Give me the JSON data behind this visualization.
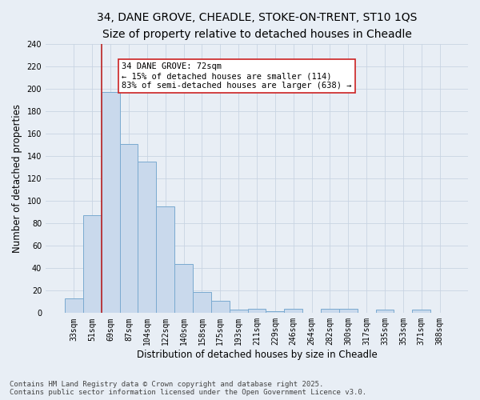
{
  "title_line1": "34, DANE GROVE, CHEADLE, STOKE-ON-TRENT, ST10 1QS",
  "title_line2": "Size of property relative to detached houses in Cheadle",
  "xlabel": "Distribution of detached houses by size in Cheadle",
  "ylabel": "Number of detached properties",
  "categories": [
    "33sqm",
    "51sqm",
    "69sqm",
    "87sqm",
    "104sqm",
    "122sqm",
    "140sqm",
    "158sqm",
    "175sqm",
    "193sqm",
    "211sqm",
    "229sqm",
    "246sqm",
    "264sqm",
    "282sqm",
    "300sqm",
    "317sqm",
    "335sqm",
    "353sqm",
    "371sqm",
    "388sqm"
  ],
  "values": [
    13,
    87,
    197,
    151,
    135,
    95,
    44,
    19,
    11,
    3,
    4,
    2,
    4,
    0,
    4,
    4,
    0,
    3,
    0,
    3,
    0
  ],
  "bar_color": "#c9d9ec",
  "bar_edge_color": "#7aaad0",
  "bar_linewidth": 0.7,
  "vline_color": "#bb2222",
  "vline_linewidth": 1.2,
  "annotation_text": "34 DANE GROVE: 72sqm\n← 15% of detached houses are smaller (114)\n83% of semi-detached houses are larger (638) →",
  "annotation_box_color": "#ffffff",
  "annotation_box_edge": "#cc2222",
  "grid_color": "#c8d4e3",
  "background_color": "#e8eef5",
  "ylim": [
    0,
    240
  ],
  "yticks": [
    0,
    20,
    40,
    60,
    80,
    100,
    120,
    140,
    160,
    180,
    200,
    220,
    240
  ],
  "footer_line1": "Contains HM Land Registry data © Crown copyright and database right 2025.",
  "footer_line2": "Contains public sector information licensed under the Open Government Licence v3.0.",
  "title_fontsize": 10,
  "subtitle_fontsize": 9,
  "axis_label_fontsize": 8.5,
  "tick_fontsize": 7,
  "footer_fontsize": 6.5,
  "annotation_fontsize": 7.5
}
